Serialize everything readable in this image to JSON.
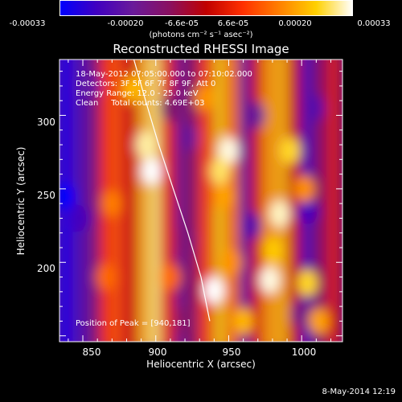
{
  "colorbar": {
    "ticks": [
      "-0.00033",
      "-0.00020",
      "-6.6e-05",
      "6.6e-05",
      "0.00020",
      "0.00033"
    ],
    "units": "(photons cm⁻² s⁻¹ asec⁻²)",
    "range": [
      -0.00033,
      0.00033
    ],
    "colormap": [
      "#0000ff",
      "#4000c0",
      "#6a1a9a",
      "#8a1060",
      "#c00000",
      "#ff3000",
      "#ff8000",
      "#ffd000",
      "#ffffff"
    ]
  },
  "info": {
    "time_range": "18-May-2012 07:05:00.000 to 07:10:02.000",
    "detectors": "Detectors: 3F 5F 6F 7F 8F 9F, Att 0",
    "energy_range": "Energy Range: 12.0 - 25.0 keV",
    "method_counts": "Clean     Total counts: 4.69E+03"
  },
  "peak_label": "Position of Peak = [940,181]",
  "footer": {
    "timestamp": "8-May-2014 12:19"
  },
  "chart_data": {
    "type": "heatmap",
    "title": "Reconstructed RHESSI Image",
    "xlabel": "Heliocentric X (arcsec)",
    "ylabel": "Heliocentric Y (arcsec)",
    "xlim": [
      834,
      1028
    ],
    "ylim": [
      146,
      338
    ],
    "xticks": [
      850,
      900,
      950,
      1000
    ],
    "yticks": [
      200,
      250,
      300
    ],
    "peak": [
      940,
      181
    ],
    "limb_curve": {
      "x": [
        885,
        893,
        902,
        912,
        922,
        931,
        937
      ],
      "y": [
        338,
        310,
        280,
        250,
        220,
        190,
        160
      ]
    },
    "columns": [
      {
        "x": 838,
        "v": -0.0003
      },
      {
        "x": 848,
        "v": -0.00022
      },
      {
        "x": 858,
        "v": -0.00012
      },
      {
        "x": 866,
        "v": 8e-05
      },
      {
        "x": 873,
        "v": 0.00012
      },
      {
        "x": 882,
        "v": 4e-05
      },
      {
        "x": 892,
        "v": 0.00022
      },
      {
        "x": 900,
        "v": 0.00028
      },
      {
        "x": 909,
        "v": 6e-05
      },
      {
        "x": 918,
        "v": -0.00014
      },
      {
        "x": 926,
        "v": -8e-05
      },
      {
        "x": 934,
        "v": 0.0001
      },
      {
        "x": 944,
        "v": 0.00024
      },
      {
        "x": 953,
        "v": 0.00016
      },
      {
        "x": 962,
        "v": -0.00016
      },
      {
        "x": 970,
        "v": 4e-05
      },
      {
        "x": 978,
        "v": 0.0002
      },
      {
        "x": 987,
        "v": 0.00022
      },
      {
        "x": 996,
        "v": 2e-05
      },
      {
        "x": 1004,
        "v": -0.00022
      },
      {
        "x": 1013,
        "v": -8e-05
      },
      {
        "x": 1022,
        "v": 4e-05
      }
    ],
    "hot_spots": [
      {
        "x": 897,
        "y": 262,
        "v": 0.00033
      },
      {
        "x": 893,
        "y": 280,
        "v": 0.0003
      },
      {
        "x": 884,
        "y": 318,
        "v": 0.00022
      },
      {
        "x": 933,
        "y": 312,
        "v": 0.00018
      },
      {
        "x": 950,
        "y": 276,
        "v": 0.00032
      },
      {
        "x": 944,
        "y": 262,
        "v": 0.00028
      },
      {
        "x": 946,
        "y": 245,
        "v": 0.0002
      },
      {
        "x": 992,
        "y": 276,
        "v": 0.00026
      },
      {
        "x": 985,
        "y": 233,
        "v": 0.00031
      },
      {
        "x": 980,
        "y": 208,
        "v": 0.00024
      },
      {
        "x": 952,
        "y": 200,
        "v": 0.00018
      },
      {
        "x": 940,
        "y": 181,
        "v": 0.00033
      },
      {
        "x": 978,
        "y": 188,
        "v": 0.00032
      },
      {
        "x": 1004,
        "y": 186,
        "v": 0.00026
      },
      {
        "x": 1012,
        "y": 160,
        "v": 0.0002
      },
      {
        "x": 960,
        "y": 160,
        "v": 0.00022
      },
      {
        "x": 870,
        "y": 240,
        "v": 0.00016
      },
      {
        "x": 866,
        "y": 190,
        "v": 0.00014
      },
      {
        "x": 910,
        "y": 190,
        "v": 0.00014
      },
      {
        "x": 1002,
        "y": 250,
        "v": 0.00018
      }
    ],
    "cold_spots": [
      {
        "x": 838,
        "y": 245,
        "v": -0.00033
      },
      {
        "x": 848,
        "y": 230,
        "v": -0.00024
      },
      {
        "x": 910,
        "y": 305,
        "v": -0.0001
      },
      {
        "x": 922,
        "y": 285,
        "v": -0.00016
      },
      {
        "x": 920,
        "y": 215,
        "v": -0.00012
      },
      {
        "x": 965,
        "y": 225,
        "v": -0.0002
      },
      {
        "x": 968,
        "y": 300,
        "v": -0.00016
      },
      {
        "x": 1008,
        "y": 305,
        "v": -0.0002
      },
      {
        "x": 1004,
        "y": 235,
        "v": -0.00024
      },
      {
        "x": 1000,
        "y": 165,
        "v": -0.00014
      },
      {
        "x": 855,
        "y": 320,
        "v": -0.00018
      },
      {
        "x": 920,
        "y": 160,
        "v": -0.0001
      }
    ]
  }
}
